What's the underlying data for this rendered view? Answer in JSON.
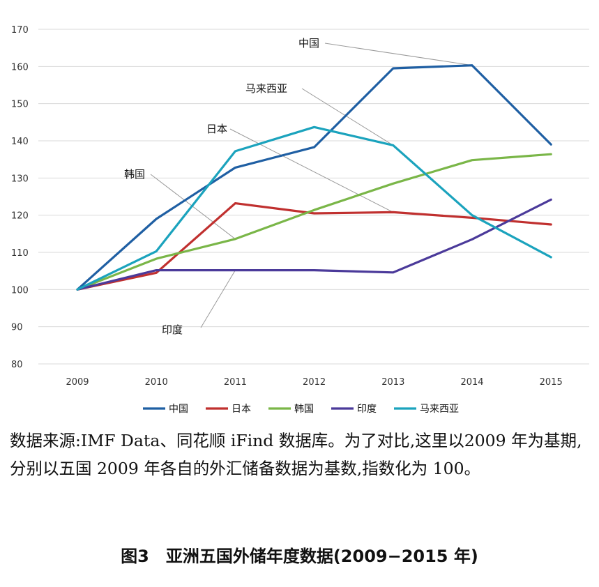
{
  "chart_data": {
    "type": "line",
    "title": "",
    "xlabel": "",
    "ylabel": "",
    "x": [
      "2009",
      "2010",
      "2011",
      "2012",
      "2013",
      "2014",
      "2015"
    ],
    "ylim": [
      80,
      170
    ],
    "yticks": [
      "80",
      "90",
      "100",
      "110",
      "120",
      "130",
      "140",
      "150",
      "160",
      "170"
    ],
    "grid": "horizontal",
    "legend_position": "bottom",
    "series": [
      {
        "name": "中国",
        "color": "#1f5fa3",
        "values": [
          100,
          119,
          132.8,
          138.3,
          159.5,
          160.3,
          139
        ]
      },
      {
        "name": "日本",
        "color": "#c0302f",
        "values": [
          100,
          104.5,
          123.2,
          120.5,
          120.8,
          119.3,
          117.5
        ]
      },
      {
        "name": "韩国",
        "color": "#7ab648",
        "values": [
          100,
          108.3,
          113.6,
          121.4,
          128.5,
          134.8,
          136.4
        ]
      },
      {
        "name": "印度",
        "color": "#4b3a9a",
        "values": [
          100,
          105.2,
          105.2,
          105.2,
          104.6,
          113.5,
          124.2
        ]
      },
      {
        "name": "马来西亚",
        "color": "#1ba3bd",
        "values": [
          100,
          110.3,
          137.2,
          143.7,
          138.8,
          120,
          108.7
        ]
      }
    ],
    "annotations": [
      {
        "text": "中国",
        "series": "中国",
        "x": "2014"
      },
      {
        "text": "马来西亚",
        "series": "马来西亚",
        "x": "2013"
      },
      {
        "text": "日本",
        "series": "日本",
        "x": "2013"
      },
      {
        "text": "韩国",
        "series": "韩国",
        "x": "2011"
      },
      {
        "text": "印度",
        "series": "印度",
        "x": "2011"
      }
    ]
  },
  "source_note": "数据来源:IMF Data、同花顺 iFind 数据库。为了对比,这里以2009 年为基期,分别以五国 2009 年各自的外汇储备数据为基数,指数化为 100。",
  "figure_caption": "图3　亚洲五国外储年度数据(2009−2015 年)"
}
